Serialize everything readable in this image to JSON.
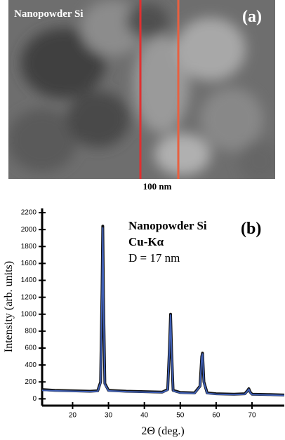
{
  "panel_a": {
    "label": "Nanopowder Si",
    "tag": "(a)",
    "scale_bar": "100 nm"
  },
  "chart_data": {
    "type": "line",
    "tag": "(b)",
    "annotations": [
      "Nanopowder Si",
      "Cu-Kα",
      "D = 17 nm"
    ],
    "x_label": "2Θ (deg.)",
    "y_label": "Intensity (arb. units)",
    "x": [
      11.5,
      15,
      20,
      25,
      27,
      27.8,
      28.2,
      28.4,
      28.6,
      29,
      30,
      35,
      40,
      45,
      46.5,
      47,
      47.3,
      47.6,
      48,
      50,
      54,
      55.5,
      56,
      56.2,
      56.6,
      57.5,
      60,
      65,
      68,
      68.8,
      69.1,
      69.5,
      70,
      75,
      79
    ],
    "series": [
      {
        "color": "#111111",
        "values": [
          110,
          100,
          95,
          90,
          95,
          200,
          1300,
          2040,
          1200,
          180,
          100,
          90,
          85,
          80,
          110,
          600,
          1000,
          550,
          100,
          75,
          70,
          150,
          500,
          540,
          200,
          70,
          60,
          55,
          60,
          100,
          120,
          80,
          55,
          50,
          45
        ]
      },
      {
        "color": "#3f5fb5",
        "values": [
          100,
          95,
          90,
          85,
          90,
          190,
          1280,
          2020,
          1180,
          170,
          95,
          85,
          80,
          75,
          105,
          590,
          990,
          540,
          95,
          70,
          65,
          145,
          490,
          530,
          190,
          65,
          55,
          50,
          55,
          95,
          115,
          75,
          50,
          45,
          40
        ]
      }
    ],
    "xlim": [
      11.5,
      79
    ],
    "ylim": [
      -80,
      2250
    ],
    "xticks": [
      20,
      30,
      40,
      50,
      60,
      70
    ],
    "yticks": [
      0,
      200,
      400,
      600,
      800,
      1000,
      1200,
      1400,
      1600,
      1800,
      2000,
      2200
    ]
  }
}
